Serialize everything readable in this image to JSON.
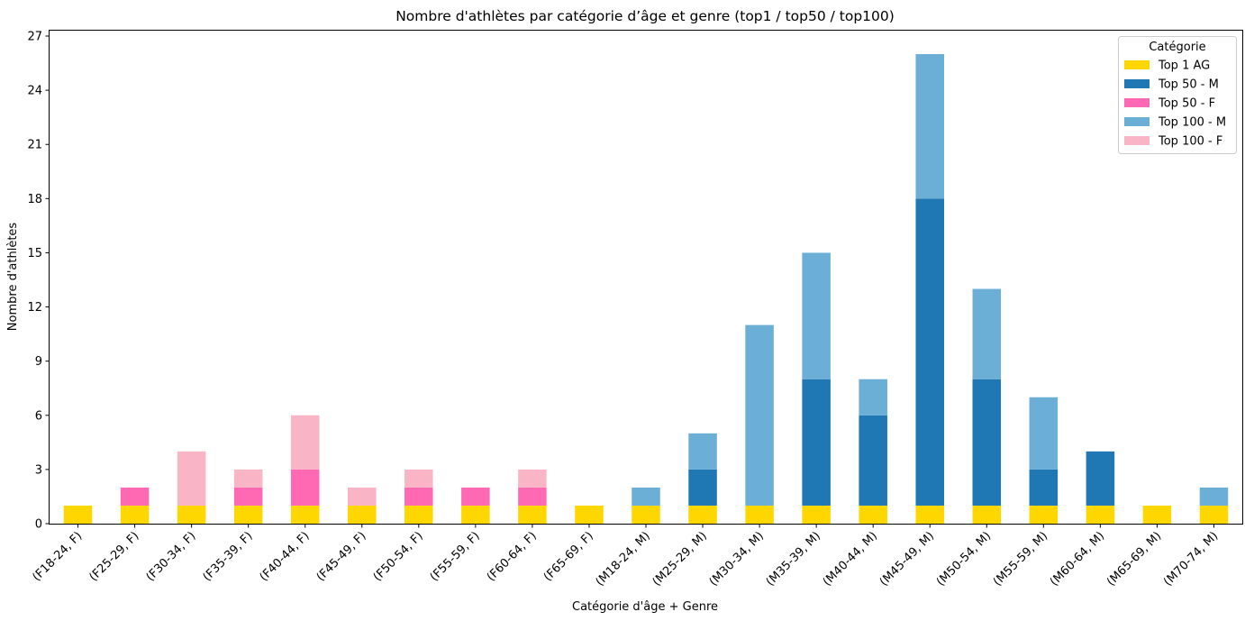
{
  "chart_data": {
    "type": "bar",
    "stacked": true,
    "title": "Nombre d'athlètes par catégorie d’âge et genre (top1 / top50 / top100)",
    "xlabel": "Catégorie d'âge + Genre",
    "ylabel": "Nombre d'athlètes",
    "ylim": [
      0,
      27.3
    ],
    "yticks": [
      0,
      3,
      6,
      9,
      12,
      15,
      18,
      21,
      24,
      27
    ],
    "grid": false,
    "legend": {
      "title": "Catégorie",
      "placement": "top-right"
    },
    "categories": [
      "(F18-24, F)",
      "(F25-29, F)",
      "(F30-34, F)",
      "(F35-39, F)",
      "(F40-44, F)",
      "(F45-49, F)",
      "(F50-54, F)",
      "(F55-59, F)",
      "(F60-64, F)",
      "(F65-69, F)",
      "(M18-24, M)",
      "(M25-29, M)",
      "(M30-34, M)",
      "(M35-39, M)",
      "(M40-44, M)",
      "(M45-49, M)",
      "(M50-54, M)",
      "(M55-59, M)",
      "(M60-64, M)",
      "(M65-69, M)",
      "(M70-74, M)"
    ],
    "series": [
      {
        "name": "Top 1 AG",
        "color": "#FFD700",
        "values": [
          1,
          1,
          1,
          1,
          1,
          1,
          1,
          1,
          1,
          1,
          1,
          1,
          1,
          1,
          1,
          1,
          1,
          1,
          1,
          1,
          1
        ]
      },
      {
        "name": "Top 50 - M",
        "color": "#1F77B4",
        "values": [
          0,
          0,
          0,
          0,
          0,
          0,
          0,
          0,
          0,
          0,
          0,
          2,
          0,
          7,
          5,
          17,
          7,
          2,
          3,
          0,
          0
        ]
      },
      {
        "name": "Top 50 - F",
        "color": "#FF69B4",
        "values": [
          0,
          1,
          0,
          1,
          2,
          0,
          1,
          1,
          1,
          0,
          0,
          0,
          0,
          0,
          0,
          0,
          0,
          0,
          0,
          0,
          0
        ]
      },
      {
        "name": "Top 100 - M",
        "color": "#6BAED6",
        "values": [
          0,
          0,
          0,
          0,
          0,
          0,
          0,
          0,
          0,
          0,
          1,
          2,
          10,
          7,
          2,
          8,
          5,
          4,
          0,
          0,
          1
        ]
      },
      {
        "name": "Top 100 - F",
        "color": "#F9B4C6",
        "values": [
          0,
          0,
          3,
          1,
          3,
          1,
          1,
          0,
          1,
          0,
          0,
          0,
          0,
          0,
          0,
          0,
          0,
          0,
          0,
          0,
          0
        ]
      }
    ]
  }
}
